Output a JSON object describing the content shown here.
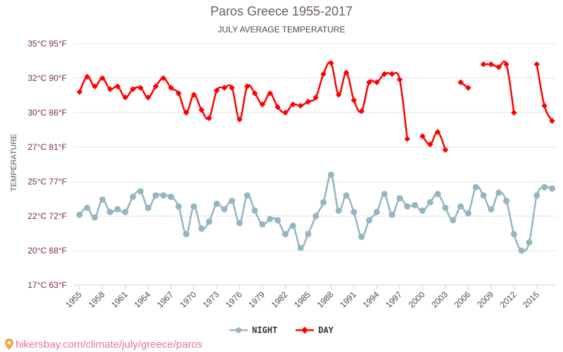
{
  "header": {
    "title": "Paros Greece 1955-2017",
    "subtitle": "JULY AVERAGE TEMPERATURE"
  },
  "footer": {
    "url": "hikersbay.com/climate/july/greece/paros",
    "icon": "map-pin-icon"
  },
  "legend": [
    {
      "label": "NIGHT",
      "color": "#93b6c2"
    },
    {
      "label": "DAY",
      "color": "#ff0000"
    }
  ],
  "chart_data": {
    "type": "line",
    "title": "Paros Greece 1955-2017",
    "subtitle": "JULY AVERAGE TEMPERATURE",
    "xlabel": "",
    "ylabel": "TEMPERATURE",
    "ylim": [
      17.5,
      35
    ],
    "y_ticks": [
      {
        "value": 35,
        "label": "35°C 95°F"
      },
      {
        "value": 32.5,
        "label": "32°C 90°F"
      },
      {
        "value": 30,
        "label": "30°C 86°F"
      },
      {
        "value": 27.5,
        "label": "27°C 81°F"
      },
      {
        "value": 25,
        "label": "25°C 77°F"
      },
      {
        "value": 22.5,
        "label": "22°C 72°F"
      },
      {
        "value": 20,
        "label": "20°C 68°F"
      },
      {
        "value": 17.5,
        "label": "17°C 63°F"
      }
    ],
    "x_ticks": [
      1955,
      1958,
      1961,
      1964,
      1967,
      1970,
      1973,
      1976,
      1979,
      1982,
      1985,
      1988,
      1991,
      1994,
      1997,
      2000,
      2003,
      2006,
      2009,
      2012,
      2015
    ],
    "x": [
      1955,
      1956,
      1957,
      1958,
      1959,
      1960,
      1961,
      1962,
      1963,
      1964,
      1965,
      1966,
      1967,
      1968,
      1969,
      1970,
      1971,
      1972,
      1973,
      1974,
      1975,
      1976,
      1977,
      1978,
      1979,
      1980,
      1981,
      1982,
      1983,
      1984,
      1985,
      1986,
      1987,
      1988,
      1989,
      1990,
      1991,
      1992,
      1993,
      1994,
      1995,
      1996,
      1997,
      1998,
      1999,
      2000,
      2001,
      2002,
      2003,
      2004,
      2005,
      2006,
      2007,
      2008,
      2009,
      2010,
      2011,
      2012,
      2013,
      2014,
      2015,
      2016,
      2017
    ],
    "grid": true,
    "legend_position": "bottom",
    "series": [
      {
        "name": "NIGHT",
        "color": "#93b6c2",
        "values": [
          22.6,
          23.1,
          22.4,
          23.7,
          22.8,
          23.0,
          22.8,
          23.9,
          24.3,
          23.1,
          24.0,
          24.0,
          23.9,
          23.2,
          21.2,
          23.2,
          21.6,
          22.1,
          23.4,
          23.0,
          23.6,
          22.0,
          24.0,
          22.9,
          21.9,
          22.3,
          22.2,
          21.2,
          21.8,
          20.2,
          21.2,
          22.5,
          23.5,
          25.5,
          22.9,
          24.0,
          22.8,
          21.0,
          22.2,
          22.8,
          24.1,
          22.6,
          23.8,
          23.2,
          23.3,
          22.9,
          23.5,
          24.1,
          23.1,
          22.2,
          23.2,
          22.7,
          24.6,
          24.0,
          23.0,
          24.2,
          23.6,
          21.2,
          20.0,
          20.6,
          24.0,
          24.6,
          24.5
        ]
      },
      {
        "name": "DAY",
        "color": "#ff0000",
        "values": [
          31.5,
          32.6,
          31.9,
          32.5,
          31.7,
          31.9,
          31.1,
          31.7,
          31.8,
          31.1,
          31.9,
          32.5,
          31.8,
          31.4,
          30.0,
          31.3,
          30.2,
          29.6,
          31.6,
          31.8,
          31.8,
          29.5,
          31.9,
          31.4,
          30.6,
          31.4,
          30.4,
          30.0,
          30.6,
          30.5,
          30.8,
          31.1,
          32.8,
          33.6,
          31.3,
          32.9,
          30.9,
          30.1,
          32.2,
          32.2,
          32.8,
          32.8,
          32.4,
          28.1,
          null,
          28.3,
          27.7,
          28.6,
          27.3,
          null,
          32.2,
          31.8,
          null,
          33.5,
          33.5,
          33.3,
          33.5,
          30.0,
          null,
          null,
          33.5,
          30.5,
          29.4
        ]
      }
    ]
  }
}
